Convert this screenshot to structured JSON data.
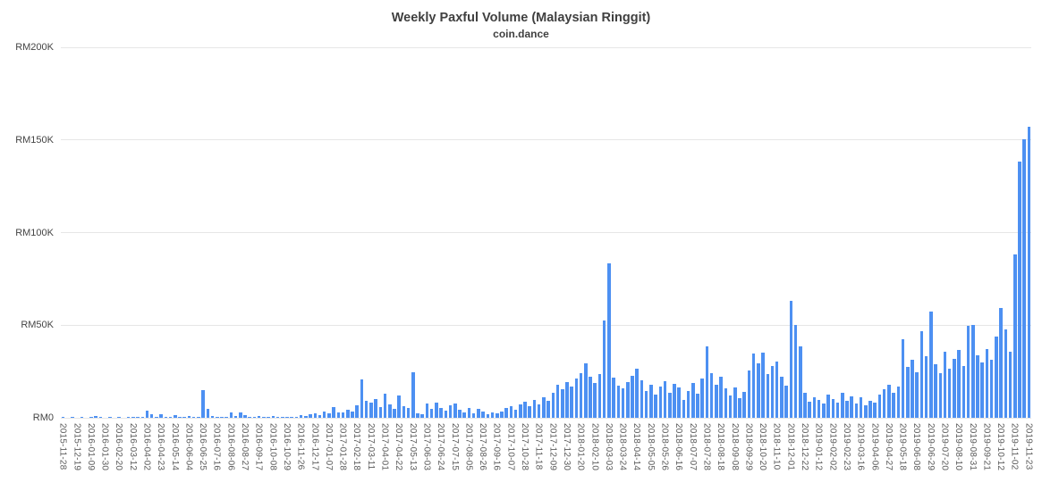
{
  "chart": {
    "title": "Weekly Paxful Volume (Malaysian Ringgit)",
    "subtitle": "coin.dance"
  },
  "colors": {
    "bar": "#4d90f2",
    "title_text": "#404040",
    "axis_text": "#444444",
    "x_label_text": "#5a5a5a",
    "gridline": "#e6e6e6",
    "background": "#ffffff"
  },
  "chart_data": {
    "type": "bar",
    "title": "Weekly Paxful Volume (Malaysian Ringgit)",
    "subtitle": "coin.dance",
    "currency": "Malaysian Ringgit (RM)",
    "xlabel": "",
    "ylabel": "",
    "ylim": [
      0,
      200000
    ],
    "grid": true,
    "legend": "none",
    "x_label_every": 3,
    "y_ticks": [
      {
        "value": 0,
        "label": "RM0"
      },
      {
        "value": 50000,
        "label": "RM50K"
      },
      {
        "value": 100000,
        "label": "RM100K"
      },
      {
        "value": 150000,
        "label": "RM150K"
      },
      {
        "value": 200000,
        "label": "RM200K"
      }
    ],
    "categories": [
      "2015-11-28",
      "2015-12-05",
      "2015-12-12",
      "2015-12-19",
      "2015-12-26",
      "2016-01-02",
      "2016-01-09",
      "2016-01-16",
      "2016-01-23",
      "2016-01-30",
      "2016-02-06",
      "2016-02-13",
      "2016-02-20",
      "2016-02-27",
      "2016-03-05",
      "2016-03-12",
      "2016-03-19",
      "2016-03-26",
      "2016-04-02",
      "2016-04-09",
      "2016-04-16",
      "2016-04-23",
      "2016-04-30",
      "2016-05-07",
      "2016-05-14",
      "2016-05-21",
      "2016-05-28",
      "2016-06-04",
      "2016-06-11",
      "2016-06-18",
      "2016-06-25",
      "2016-07-02",
      "2016-07-09",
      "2016-07-16",
      "2016-07-23",
      "2016-07-30",
      "2016-08-06",
      "2016-08-13",
      "2016-08-20",
      "2016-08-27",
      "2016-09-03",
      "2016-09-10",
      "2016-09-17",
      "2016-09-24",
      "2016-10-01",
      "2016-10-08",
      "2016-10-15",
      "2016-10-22",
      "2016-10-29",
      "2016-11-05",
      "2016-11-12",
      "2016-11-26",
      "2016-12-03",
      "2016-12-10",
      "2016-12-17",
      "2016-12-24",
      "2016-12-31",
      "2017-01-07",
      "2017-01-14",
      "2017-01-21",
      "2017-01-28",
      "2017-02-04",
      "2017-02-11",
      "2017-02-18",
      "2017-02-25",
      "2017-03-04",
      "2017-03-11",
      "2017-03-18",
      "2017-03-25",
      "2017-04-01",
      "2017-04-08",
      "2017-04-15",
      "2017-04-22",
      "2017-04-29",
      "2017-05-06",
      "2017-05-13",
      "2017-05-20",
      "2017-05-27",
      "2017-06-03",
      "2017-06-10",
      "2017-06-17",
      "2017-06-24",
      "2017-07-01",
      "2017-07-08",
      "2017-07-15",
      "2017-07-22",
      "2017-07-29",
      "2017-08-05",
      "2017-08-12",
      "2017-08-19",
      "2017-08-26",
      "2017-09-02",
      "2017-09-09",
      "2017-09-16",
      "2017-09-23",
      "2017-09-30",
      "2017-10-07",
      "2017-10-14",
      "2017-10-21",
      "2017-10-28",
      "2017-11-04",
      "2017-11-11",
      "2017-11-18",
      "2017-11-25",
      "2017-12-02",
      "2017-12-09",
      "2017-12-16",
      "2017-12-23",
      "2017-12-30",
      "2018-01-06",
      "2018-01-13",
      "2018-01-20",
      "2018-01-27",
      "2018-02-03",
      "2018-02-10",
      "2018-02-17",
      "2018-02-24",
      "2018-03-03",
      "2018-03-10",
      "2018-03-17",
      "2018-03-24",
      "2018-03-31",
      "2018-04-07",
      "2018-04-14",
      "2018-04-21",
      "2018-04-28",
      "2018-05-05",
      "2018-05-12",
      "2018-05-19",
      "2018-05-26",
      "2018-06-02",
      "2018-06-09",
      "2018-06-16",
      "2018-06-23",
      "2018-06-30",
      "2018-07-07",
      "2018-07-14",
      "2018-07-21",
      "2018-07-28",
      "2018-08-04",
      "2018-08-11",
      "2018-08-18",
      "2018-08-25",
      "2018-09-01",
      "2018-09-08",
      "2018-09-15",
      "2018-09-22",
      "2018-09-29",
      "2018-10-06",
      "2018-10-13",
      "2018-10-20",
      "2018-10-27",
      "2018-11-03",
      "2018-11-10",
      "2018-11-17",
      "2018-11-24",
      "2018-12-01",
      "2018-12-08",
      "2018-12-15",
      "2018-12-22",
      "2018-12-29",
      "2019-01-05",
      "2019-01-12",
      "2019-01-19",
      "2019-01-26",
      "2019-02-02",
      "2019-02-09",
      "2019-02-16",
      "2019-02-23",
      "2019-03-02",
      "2019-03-09",
      "2019-03-16",
      "2019-03-23",
      "2019-03-30",
      "2019-04-06",
      "2019-04-13",
      "2019-04-20",
      "2019-04-27",
      "2019-05-04",
      "2019-05-11",
      "2019-05-18",
      "2019-05-25",
      "2019-06-01",
      "2019-06-08",
      "2019-06-15",
      "2019-06-22",
      "2019-06-29",
      "2019-07-06",
      "2019-07-13",
      "2019-07-20",
      "2019-07-27",
      "2019-08-03",
      "2019-08-10",
      "2019-08-17",
      "2019-08-24",
      "2019-08-31",
      "2019-09-07",
      "2019-09-14",
      "2019-09-21",
      "2019-09-28",
      "2019-10-05",
      "2019-10-12",
      "2019-10-19",
      "2019-10-26",
      "2019-11-02",
      "2019-11-09",
      "2019-11-16",
      "2019-11-23"
    ],
    "values": [
      400,
      0,
      150,
      0,
      250,
      0,
      300,
      1100,
      200,
      0,
      150,
      0,
      250,
      0,
      300,
      200,
      700,
      400,
      3800,
      2100,
      500,
      1700,
      300,
      600,
      1300,
      400,
      250,
      900,
      500,
      700,
      14800,
      4900,
      800,
      500,
      300,
      600,
      2900,
      1000,
      3100,
      1600,
      700,
      400,
      900,
      300,
      500,
      800,
      400,
      600,
      300,
      500,
      700,
      1400,
      1100,
      1900,
      2600,
      1500,
      3400,
      2200,
      5800,
      3100,
      2700,
      4200,
      3600,
      6800,
      20600,
      9400,
      8100,
      10300,
      5600,
      12800,
      7200,
      4800,
      11900,
      6400,
      5100,
      24700,
      2300,
      1800,
      7600,
      4900,
      8200,
      5400,
      3700,
      6800,
      7900,
      4200,
      3100,
      5300,
      2600,
      4700,
      3400,
      2100,
      2800,
      2400,
      3600,
      5200,
      6100,
      4400,
      7300,
      8600,
      6200,
      9800,
      7400,
      11200,
      9100,
      13600,
      17800,
      15200,
      19400,
      16700,
      21300,
      24100,
      29600,
      22400,
      18900,
      23700,
      52300,
      83400,
      21600,
      17300,
      15800,
      19200,
      22700,
      26300,
      20100,
      14600,
      17900,
      12400,
      16800,
      19600,
      13700,
      18200,
      16400,
      9800,
      14300,
      18700,
      12900,
      21400,
      38600,
      24200,
      17600,
      22300,
      15800,
      12100,
      16500,
      10700,
      13900,
      25600,
      34800,
      29300,
      35200,
      23600,
      27900,
      30400,
      22100,
      17400,
      63200,
      50100,
      38700,
      13600,
      8900,
      11200,
      9600,
      7800,
      12400,
      10300,
      8100,
      13700,
      9200,
      11800,
      7600,
      10900,
      6800,
      9400,
      8200,
      12700,
      15300,
      17800,
      13400,
      16900,
      42300,
      27600,
      31200,
      24800,
      46700,
      33400,
      57200,
      28900,
      24300,
      35600,
      26700,
      31800,
      36400,
      28200,
      49800,
      50200,
      33600,
      29700,
      36900,
      31400,
      43800,
      59200,
      47600,
      35700,
      88400,
      138500,
      150200,
      157300
    ]
  }
}
